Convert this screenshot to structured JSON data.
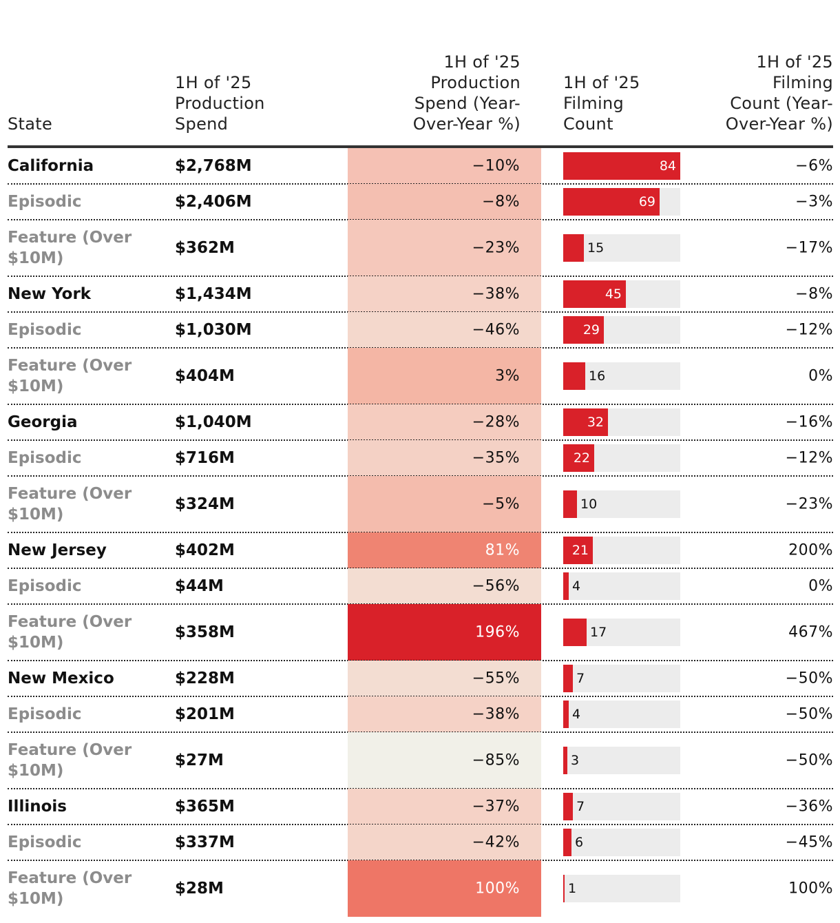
{
  "chart_data": {
    "type": "table",
    "title": "",
    "columns": [
      "State",
      "1H of '25 Production Spend",
      "1H of '25 Production Spend (Year-Over-Year %)",
      "1H of '25 Filming Count",
      "1H of '25 Filming Count (Year-Over-Year %)"
    ],
    "filming_count_max": 84,
    "rows": [
      {
        "state": "California",
        "level": "state",
        "spend": "$2,768M",
        "spend_yoy": "−10%",
        "spend_yoy_value": -10,
        "count": 84,
        "count_label": "84",
        "count_yoy": "−6%",
        "heat_color": "#f5c1b4",
        "light_text": false
      },
      {
        "state": "Episodic",
        "level": "sub",
        "spend": "$2,406M",
        "spend_yoy": "−8%",
        "spend_yoy_value": -8,
        "count": 69,
        "count_label": "69",
        "count_yoy": "−3%",
        "heat_color": "#f4bfb1",
        "light_text": false
      },
      {
        "state": "Feature (Over $10M)",
        "level": "sub",
        "spend": "$362M",
        "spend_yoy": "−23%",
        "spend_yoy_value": -23,
        "count": 15,
        "count_label": "15",
        "count_yoy": "−17%",
        "heat_color": "#f5c8bb",
        "light_text": false
      },
      {
        "state": "New York",
        "level": "state",
        "spend": "$1,434M",
        "spend_yoy": "−38%",
        "spend_yoy_value": -38,
        "count": 45,
        "count_label": "45",
        "count_yoy": "−8%",
        "heat_color": "#f5d2c6",
        "light_text": false
      },
      {
        "state": "Episodic",
        "level": "sub",
        "spend": "$1,030M",
        "spend_yoy": "−46%",
        "spend_yoy_value": -46,
        "count": 29,
        "count_label": "29",
        "count_yoy": "−12%",
        "heat_color": "#f4d8cc",
        "light_text": false
      },
      {
        "state": "Feature (Over $10M)",
        "level": "sub",
        "spend": "$404M",
        "spend_yoy": "3%",
        "spend_yoy_value": 3,
        "count": 16,
        "count_label": "16",
        "count_yoy": "0%",
        "heat_color": "#f4b6a5",
        "light_text": false
      },
      {
        "state": "Georgia",
        "level": "state",
        "spend": "$1,040M",
        "spend_yoy": "−28%",
        "spend_yoy_value": -28,
        "count": 32,
        "count_label": "32",
        "count_yoy": "−16%",
        "heat_color": "#f5ccbf",
        "light_text": false
      },
      {
        "state": "Episodic",
        "level": "sub",
        "spend": "$716M",
        "spend_yoy": "−35%",
        "spend_yoy_value": -35,
        "count": 22,
        "count_label": "22",
        "count_yoy": "−12%",
        "heat_color": "#f4d1c5",
        "light_text": false
      },
      {
        "state": "Feature (Over $10M)",
        "level": "sub",
        "spend": "$324M",
        "spend_yoy": "−5%",
        "spend_yoy_value": -5,
        "count": 10,
        "count_label": "10",
        "count_yoy": "−23%",
        "heat_color": "#f4bcad",
        "light_text": false
      },
      {
        "state": "New Jersey",
        "level": "state",
        "spend": "$402M",
        "spend_yoy": "81%",
        "spend_yoy_value": 81,
        "count": 21,
        "count_label": "21",
        "count_yoy": "200%",
        "heat_color": "#ef8472",
        "light_text": true
      },
      {
        "state": "Episodic",
        "level": "sub",
        "spend": "$44M",
        "spend_yoy": "−56%",
        "spend_yoy_value": -56,
        "count": 4,
        "count_label": "4",
        "count_yoy": "0%",
        "heat_color": "#f3ddd2",
        "light_text": false
      },
      {
        "state": "Feature (Over $10M)",
        "level": "sub",
        "spend": "$358M",
        "spend_yoy": "196%",
        "spend_yoy_value": 196,
        "count": 17,
        "count_label": "17",
        "count_yoy": "467%",
        "heat_color": "#d92129",
        "light_text": true
      },
      {
        "state": "New Mexico",
        "level": "state",
        "spend": "$228M",
        "spend_yoy": "−55%",
        "spend_yoy_value": -55,
        "count": 7,
        "count_label": "7",
        "count_yoy": "−50%",
        "heat_color": "#f3ddd2",
        "light_text": false
      },
      {
        "state": "Episodic",
        "level": "sub",
        "spend": "$201M",
        "spend_yoy": "−38%",
        "spend_yoy_value": -38,
        "count": 4,
        "count_label": "4",
        "count_yoy": "−50%",
        "heat_color": "#f5d2c6",
        "light_text": false
      },
      {
        "state": "Feature (Over $10M)",
        "level": "sub",
        "spend": "$27M",
        "spend_yoy": "−85%",
        "spend_yoy_value": -85,
        "count": 3,
        "count_label": "3",
        "count_yoy": "−50%",
        "heat_color": "#f1f0e8",
        "light_text": false
      },
      {
        "state": "Illinois",
        "level": "state",
        "spend": "$365M",
        "spend_yoy": "−37%",
        "spend_yoy_value": -37,
        "count": 7,
        "count_label": "7",
        "count_yoy": "−36%",
        "heat_color": "#f5d2c6",
        "light_text": false
      },
      {
        "state": "Episodic",
        "level": "sub",
        "spend": "$337M",
        "spend_yoy": "−42%",
        "spend_yoy_value": -42,
        "count": 6,
        "count_label": "6",
        "count_yoy": "−45%",
        "heat_color": "#f4d5c9",
        "light_text": false
      },
      {
        "state": "Feature (Over $10M)",
        "level": "sub",
        "spend": "$28M",
        "spend_yoy": "100%",
        "spend_yoy_value": 100,
        "count": 1,
        "count_label": "1",
        "count_yoy": "100%",
        "heat_color": "#ee7666",
        "light_text": true
      }
    ]
  },
  "colors": {
    "bar_fill": "#d92129",
    "bar_track": "#ececec",
    "sub_label": "#8c8c8c",
    "header_rule": "#333333"
  }
}
